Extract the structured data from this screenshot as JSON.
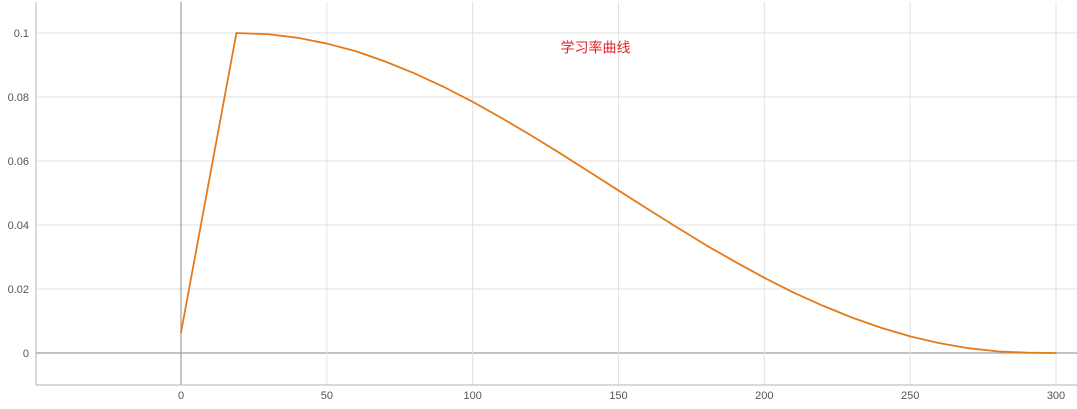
{
  "chart_data": {
    "type": "line",
    "title": "",
    "xlabel": "",
    "ylabel": "",
    "xlim": [
      -50,
      308
    ],
    "ylim": [
      -0.01,
      0.11
    ],
    "x_ticks": [
      0,
      50,
      100,
      150,
      200,
      250,
      300
    ],
    "x_tick_labels": [
      "0",
      "50",
      "100",
      "150",
      "200",
      "250",
      "300"
    ],
    "y_ticks": [
      0,
      0.02,
      0.04,
      0.06,
      0.08,
      0.1
    ],
    "y_tick_labels": [
      "0",
      "0.02",
      "0.04",
      "0.06",
      "0.08",
      "0.1"
    ],
    "grid": true,
    "annotation": {
      "text": "学习率曲线",
      "x": 150,
      "y": 0.098,
      "color": "#e8202a"
    },
    "series": [
      {
        "color": "#e57a1b",
        "x": [
          0,
          19,
          30,
          40,
          50,
          60,
          70,
          80,
          90,
          100,
          110,
          120,
          130,
          140,
          150,
          160,
          170,
          180,
          190,
          200,
          210,
          220,
          230,
          240,
          250,
          260,
          270,
          280,
          290,
          300
        ],
        "y": [
          0.0064,
          0.1,
          0.0996,
          0.0985,
          0.0967,
          0.0943,
          0.0911,
          0.0874,
          0.0832,
          0.0785,
          0.0734,
          0.068,
          0.0624,
          0.0566,
          0.0508,
          0.045,
          0.0393,
          0.0337,
          0.0285,
          0.0235,
          0.0189,
          0.0148,
          0.0111,
          0.0079,
          0.0052,
          0.0031,
          0.0015,
          0.0005,
          0.0001,
          0.0
        ]
      }
    ]
  }
}
